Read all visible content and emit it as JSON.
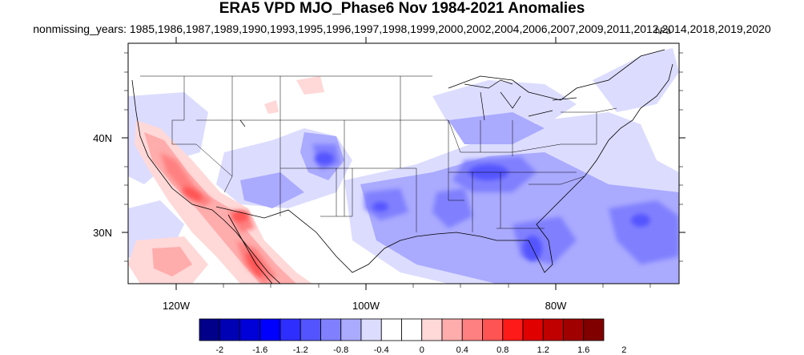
{
  "title": "ERA5 VPD MJO_Phase6 Nov 1984-2021 Anomalies",
  "subtitle": "nonmissing_years: 1985,1986,1987,1989,1990,1993,1995,1996,1997,1998,1999,2000,2002,2004,2006,2007,2009,2011,2012,2014,2018,2019,2020",
  "units": "hPa",
  "map": {
    "projection": "cylindrical-equidistant",
    "lon_range": [
      -125,
      -67
    ],
    "lat_range": [
      24,
      50
    ],
    "x_ticks": [
      {
        "lon": -120,
        "label": "120W"
      },
      {
        "lon": -100,
        "label": "100W"
      },
      {
        "lon": -80,
        "label": "80W"
      }
    ],
    "y_ticks": [
      {
        "lat": 40,
        "label": "40N"
      },
      {
        "lat": 30,
        "label": "30N"
      }
    ],
    "pattern": "positive anomalies along California and the Gulf of California / Sierra Madre Occidental; negative anomalies over the southeastern US, Gulf Coast and western Atlantic, and over southern Colorado"
  },
  "colorbar": {
    "colors": [
      "#00008b",
      "#0000b4",
      "#0000d8",
      "#0000ff",
      "#2e2eff",
      "#5454ff",
      "#8080ff",
      "#aaaaff",
      "#dcdcff",
      "#ffffff",
      "#ffffff",
      "#ffd8d8",
      "#ffacac",
      "#ff8080",
      "#ff5454",
      "#ff1a1a",
      "#e00000",
      "#c00000",
      "#a00000",
      "#800000"
    ],
    "labels": [
      "-2",
      "-1.6",
      "-1.2",
      "-0.8",
      "-0.4",
      "0",
      "0.4",
      "0.8",
      "1.2",
      "1.6",
      "2"
    ]
  }
}
